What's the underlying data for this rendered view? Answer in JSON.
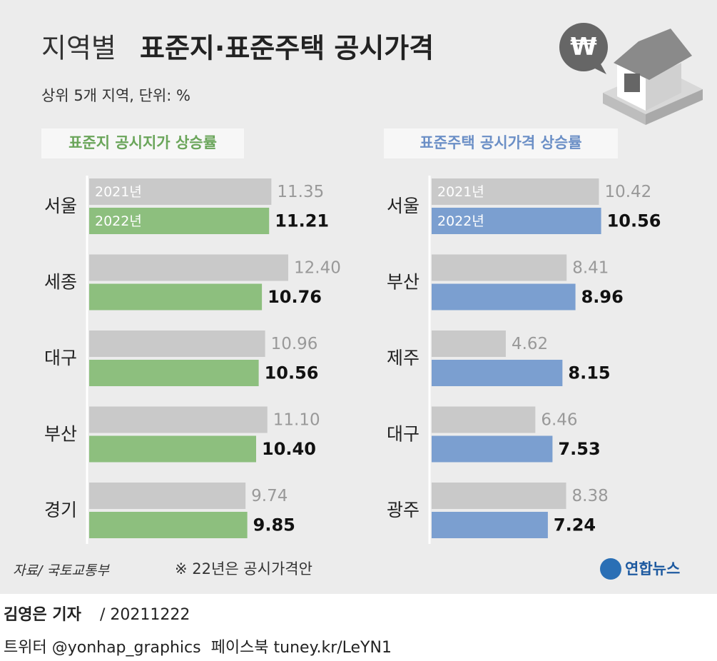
{
  "header": {
    "title_light": "지역별",
    "title_bold": "표준지·표준주택 공시가격",
    "subtitle": "상위 5개 지역, 단위: %",
    "icon_symbol": "₩"
  },
  "chart_data": [
    {
      "type": "bar",
      "title": "표준지 공시지가 상승률",
      "categories": [
        "서울",
        "세종",
        "대구",
        "부산",
        "경기"
      ],
      "series": [
        {
          "name": "2021년",
          "color": "#c9c9c9",
          "values": [
            11.35,
            12.4,
            10.96,
            11.1,
            9.74
          ],
          "value_labels": [
            "11.35",
            "12.40",
            "10.96",
            "11.10",
            "9.74"
          ]
        },
        {
          "name": "2022년",
          "color": "#8dbf7e",
          "values": [
            11.21,
            10.76,
            10.56,
            10.4,
            9.85
          ],
          "value_labels": [
            "11.21",
            "10.76",
            "10.56",
            "10.40",
            "9.85"
          ]
        }
      ]
    },
    {
      "type": "bar",
      "title": "표준주택 공시가격 상승률",
      "categories": [
        "서울",
        "부산",
        "제주",
        "대구",
        "광주"
      ],
      "series": [
        {
          "name": "2021년",
          "color": "#c9c9c9",
          "values": [
            10.42,
            8.41,
            4.62,
            6.46,
            8.38
          ],
          "value_labels": [
            "10.42",
            "8.41",
            "4.62",
            "6.46",
            "8.38"
          ]
        },
        {
          "name": "2022년",
          "color": "#7b9fd0",
          "values": [
            10.56,
            8.96,
            8.15,
            7.53,
            7.24
          ],
          "value_labels": [
            "10.56",
            "8.96",
            "8.15",
            "7.53",
            "7.24"
          ]
        }
      ]
    }
  ],
  "footer": {
    "source": "자료/ 국토교통부",
    "note": "※ 22년은 공시가격안",
    "logo": "연합뉴스",
    "reporter": "김영은 기자",
    "date": "/ 20211222",
    "social": "트위터 @yonhap_graphics  페이스북 tuney.kr/LeYN1"
  }
}
